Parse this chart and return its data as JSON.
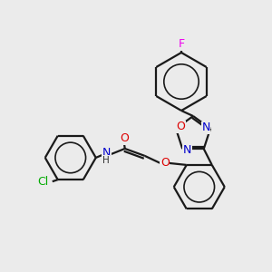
{
  "background_color": "#ebebeb",
  "bond_color": "#1a1a1a",
  "bond_lw": 1.6,
  "atom_colors": {
    "F": "#ee00ee",
    "O": "#dd0000",
    "N": "#0000cc",
    "Cl": "#00aa00",
    "H": "#333333",
    "C": "#1a1a1a"
  },
  "figsize": [
    3.0,
    3.0
  ],
  "dpi": 100,
  "ring_font": 8.5,
  "label_font": 8.5
}
